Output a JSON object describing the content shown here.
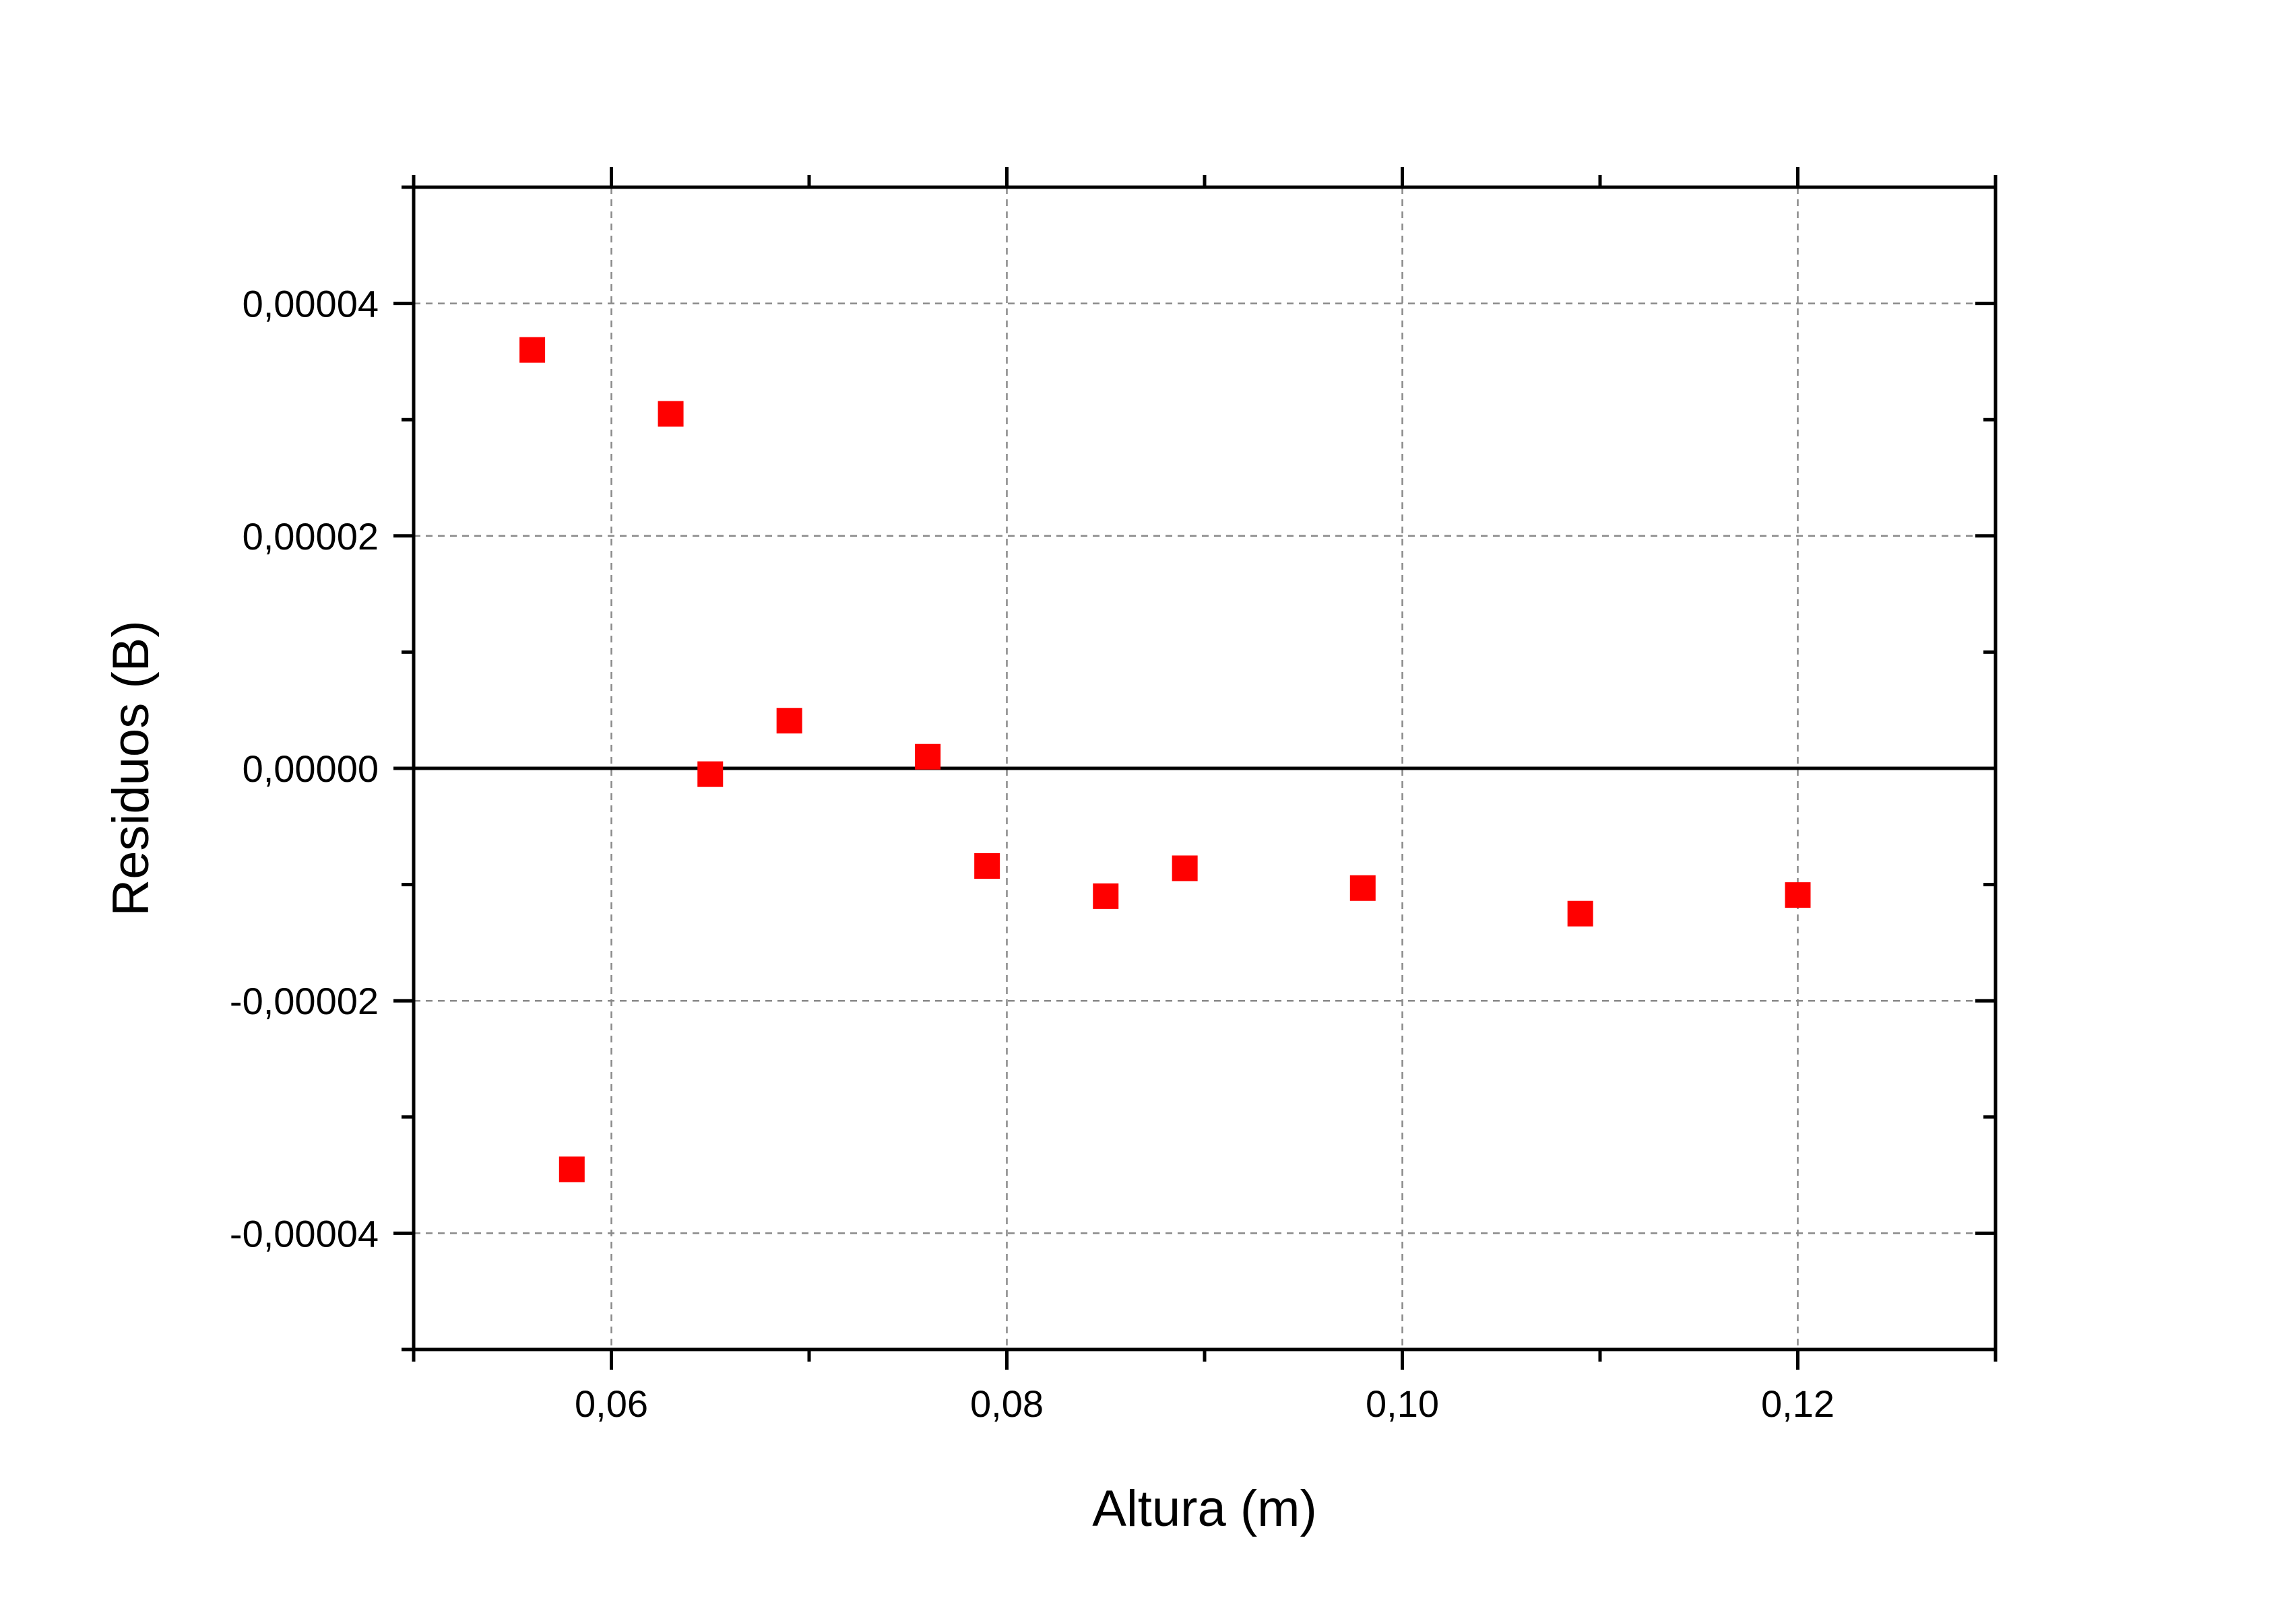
{
  "chart_data": {
    "type": "scatter",
    "title": "",
    "xlabel": "Altura (m)",
    "ylabel": "Residuos (B)",
    "xlim": [
      0.05,
      0.13
    ],
    "ylim": [
      -5e-05,
      5e-05
    ],
    "x_ticks": [
      0.06,
      0.08,
      0.1,
      0.12
    ],
    "x_tick_labels": [
      "0,06",
      "0,08",
      "0,10",
      "0,12"
    ],
    "y_ticks": [
      -4e-05,
      -2e-05,
      0.0,
      2e-05,
      4e-05
    ],
    "y_tick_labels": [
      "-0,00004",
      "-0,00002",
      "0,00000",
      "0,00002",
      "0,00004"
    ],
    "grid": true,
    "zero_line": true,
    "marker": "square",
    "series": [
      {
        "color": "#ff0000",
        "points": [
          {
            "x": 0.056,
            "y": 3.6e-05
          },
          {
            "x": 0.058,
            "y": -3.45e-05
          },
          {
            "x": 0.063,
            "y": 3.05e-05
          },
          {
            "x": 0.065,
            "y": -5e-07
          },
          {
            "x": 0.069,
            "y": 4.1e-06
          },
          {
            "x": 0.076,
            "y": 1e-06
          },
          {
            "x": 0.079,
            "y": -8.4e-06
          },
          {
            "x": 0.085,
            "y": -1.1e-05
          },
          {
            "x": 0.089,
            "y": -8.6e-06
          },
          {
            "x": 0.098,
            "y": -1.03e-05
          },
          {
            "x": 0.109,
            "y": -1.25e-05
          },
          {
            "x": 0.12,
            "y": -1.09e-05
          }
        ]
      }
    ]
  }
}
